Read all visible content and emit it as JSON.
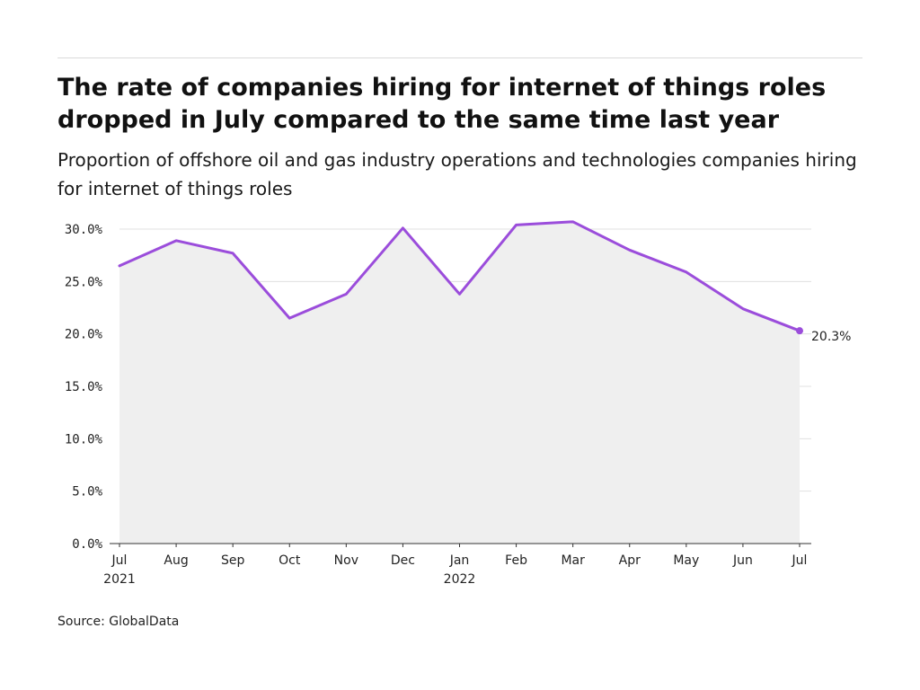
{
  "title": "The rate of companies hiring for internet of things roles dropped in July compared to the same time last year",
  "subtitle": "Proportion of offshore oil and gas industry operations and technologies companies hiring for internet of things roles",
  "source": "Source: GlobalData",
  "colors": {
    "line": "#9b4ddb",
    "area": "#efefef",
    "grid": "#e0e0e0",
    "axis": "#333333"
  },
  "chart_data": {
    "type": "area",
    "categories": [
      "Jul",
      "Aug",
      "Sep",
      "Oct",
      "Nov",
      "Dec",
      "Jan",
      "Feb",
      "Mar",
      "Apr",
      "May",
      "Jun",
      "Jul"
    ],
    "category_sublabels": [
      "2021",
      "",
      "",
      "",
      "",
      "",
      "2022",
      "",
      "",
      "",
      "",
      "",
      ""
    ],
    "series": [
      {
        "values": [
          26.5,
          28.9,
          27.7,
          21.5,
          23.8,
          30.1,
          23.8,
          30.4,
          30.7,
          28.0,
          25.9,
          22.4,
          20.3
        ]
      }
    ],
    "yticks": [
      "0.0%",
      "5.0%",
      "10.0%",
      "15.0%",
      "20.0%",
      "25.0%",
      "30.0%"
    ],
    "ylim": [
      0,
      30
    ],
    "end_label": "20.3%",
    "grid": true,
    "legend": "none"
  }
}
